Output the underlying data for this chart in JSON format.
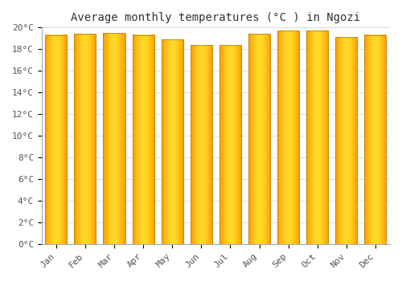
{
  "title": "Average monthly temperatures (°C ) in Ngozi",
  "months": [
    "Jan",
    "Feb",
    "Mar",
    "Apr",
    "May",
    "Jun",
    "Jul",
    "Aug",
    "Sep",
    "Oct",
    "Nov",
    "Dec"
  ],
  "temperatures": [
    19.3,
    19.4,
    19.5,
    19.3,
    18.9,
    18.4,
    18.4,
    19.4,
    19.7,
    19.7,
    19.1,
    19.3
  ],
  "bar_color": "#FFA500",
  "bar_edge_color": "#CC8800",
  "ylim": [
    0,
    20
  ],
  "yticks": [
    0,
    2,
    4,
    6,
    8,
    10,
    12,
    14,
    16,
    18,
    20
  ],
  "ytick_labels": [
    "0°C",
    "2°C",
    "4°C",
    "6°C",
    "8°C",
    "10°C",
    "12°C",
    "14°C",
    "16°C",
    "18°C",
    "20°C"
  ],
  "background_color": "#ffffff",
  "grid_color": "#dddddd",
  "title_fontsize": 10,
  "tick_fontsize": 8,
  "bar_width": 0.75
}
